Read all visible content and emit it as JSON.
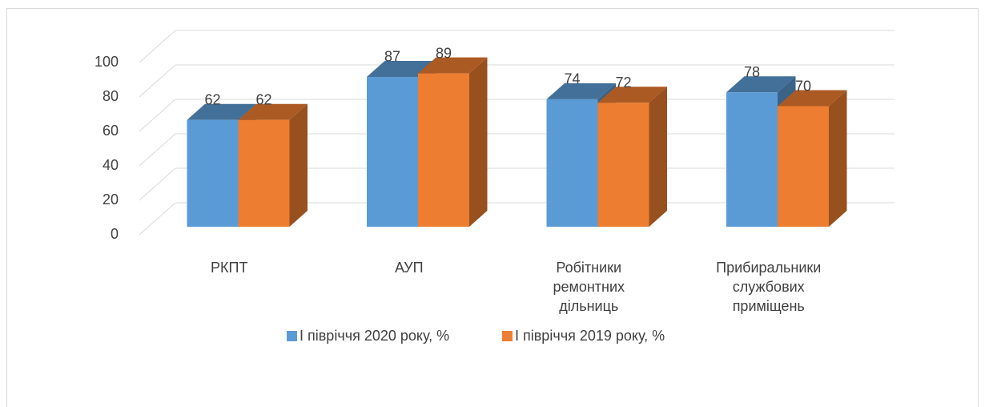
{
  "chart_data": {
    "type": "bar3d",
    "categories": [
      "РКПТ",
      "АУП",
      "Робітники ремонтних дільниць",
      "Прибиральники службових приміщень"
    ],
    "series": [
      {
        "name": "І півріччя 2020 року, %",
        "color": "#5b9bd5",
        "values": [
          62,
          87,
          74,
          78
        ]
      },
      {
        "name": "І півріччя 2019 року, %",
        "color": "#ed7d31",
        "values": [
          62,
          89,
          72,
          70
        ]
      }
    ],
    "ylim": [
      0,
      100
    ],
    "yticks": [
      0,
      20,
      40,
      60,
      80,
      100
    ],
    "grid": true,
    "legend": "bottom"
  }
}
